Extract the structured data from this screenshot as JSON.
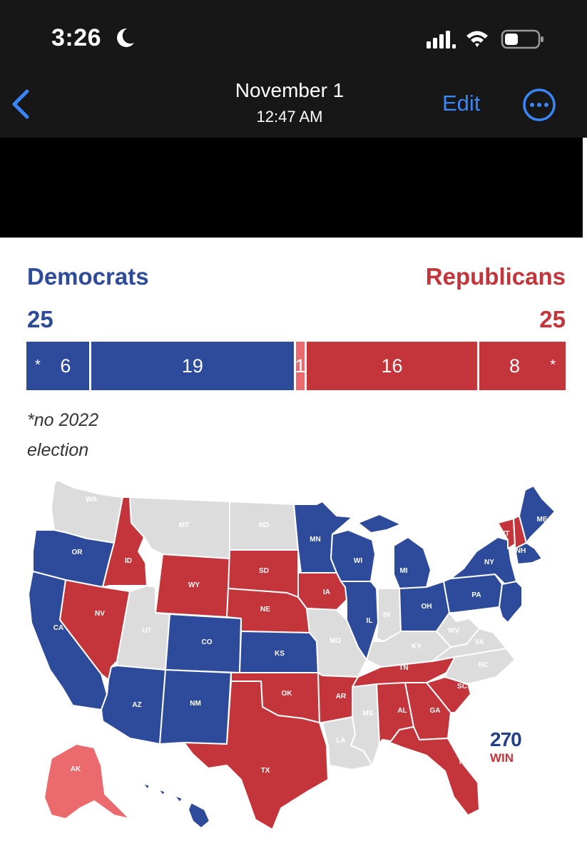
{
  "status_bar": {
    "time": "3:26"
  },
  "nav": {
    "title": "November 1",
    "subtitle": "12:47 AM",
    "edit_label": "Edit"
  },
  "colors": {
    "dem": "#2e4a9a",
    "rep": "#c4353b",
    "lean_rep": "#ea6a6e",
    "none": "#dcdcdc",
    "accent": "#3a86f7"
  },
  "parties": {
    "dem": {
      "name": "Democrats",
      "count": "25"
    },
    "rep": {
      "name": "Republicans",
      "count": "25"
    }
  },
  "seat_bar": {
    "segments": [
      {
        "value": 6,
        "label": "6",
        "starred": true,
        "color": "#2e4a9a"
      },
      {
        "value": 19,
        "label": "19",
        "starred": false,
        "color": "#2e4a9a"
      },
      {
        "value": 1,
        "label": "1",
        "starred": false,
        "color": "#ea6a6e"
      },
      {
        "value": 16,
        "label": "16",
        "starred": false,
        "color": "#c4353b"
      },
      {
        "value": 8,
        "label": "8",
        "starred": true,
        "color": "#c4353b"
      }
    ],
    "star": "*"
  },
  "footnote": {
    "line1": "*no 2022",
    "line2": "election"
  },
  "map": {
    "states": [
      {
        "abbr": "WA",
        "party": "none"
      },
      {
        "abbr": "OR",
        "party": "dem"
      },
      {
        "abbr": "CA",
        "party": "dem"
      },
      {
        "abbr": "ID",
        "party": "rep"
      },
      {
        "abbr": "NV",
        "party": "rep"
      },
      {
        "abbr": "MT",
        "party": "none"
      },
      {
        "abbr": "WY",
        "party": "rep"
      },
      {
        "abbr": "UT",
        "party": "none"
      },
      {
        "abbr": "CO",
        "party": "dem"
      },
      {
        "abbr": "AZ",
        "party": "dem"
      },
      {
        "abbr": "NM",
        "party": "dem"
      },
      {
        "abbr": "ND",
        "party": "none"
      },
      {
        "abbr": "SD",
        "party": "rep"
      },
      {
        "abbr": "NE",
        "party": "rep"
      },
      {
        "abbr": "KS",
        "party": "dem"
      },
      {
        "abbr": "OK",
        "party": "rep"
      },
      {
        "abbr": "TX",
        "party": "rep"
      },
      {
        "abbr": "MN",
        "party": "dem"
      },
      {
        "abbr": "IA",
        "party": "rep"
      },
      {
        "abbr": "MO",
        "party": "none"
      },
      {
        "abbr": "AR",
        "party": "rep"
      },
      {
        "abbr": "LA",
        "party": "none"
      },
      {
        "abbr": "WI",
        "party": "dem"
      },
      {
        "abbr": "IL",
        "party": "dem"
      },
      {
        "abbr": "MI",
        "party": "dem"
      },
      {
        "abbr": "IN",
        "party": "none"
      },
      {
        "abbr": "OH",
        "party": "dem"
      },
      {
        "abbr": "KY",
        "party": "none"
      },
      {
        "abbr": "TN",
        "party": "rep"
      },
      {
        "abbr": "MS",
        "party": "none"
      },
      {
        "abbr": "AL",
        "party": "rep"
      },
      {
        "abbr": "GA",
        "party": "rep"
      },
      {
        "abbr": "FL",
        "party": "rep"
      },
      {
        "abbr": "SC",
        "party": "rep"
      },
      {
        "abbr": "NC",
        "party": "none"
      },
      {
        "abbr": "VA",
        "party": "none"
      },
      {
        "abbr": "WV",
        "party": "none"
      },
      {
        "abbr": "PA",
        "party": "dem"
      },
      {
        "abbr": "NY",
        "party": "dem"
      },
      {
        "abbr": "VT",
        "party": "rep"
      },
      {
        "abbr": "NH",
        "party": "rep"
      },
      {
        "abbr": "ME",
        "party": "dem"
      },
      {
        "abbr": "AK",
        "party": "lean_rep"
      },
      {
        "abbr": "HI",
        "party": "dem"
      }
    ],
    "logo_number": "270",
    "logo_text": "WIN"
  }
}
